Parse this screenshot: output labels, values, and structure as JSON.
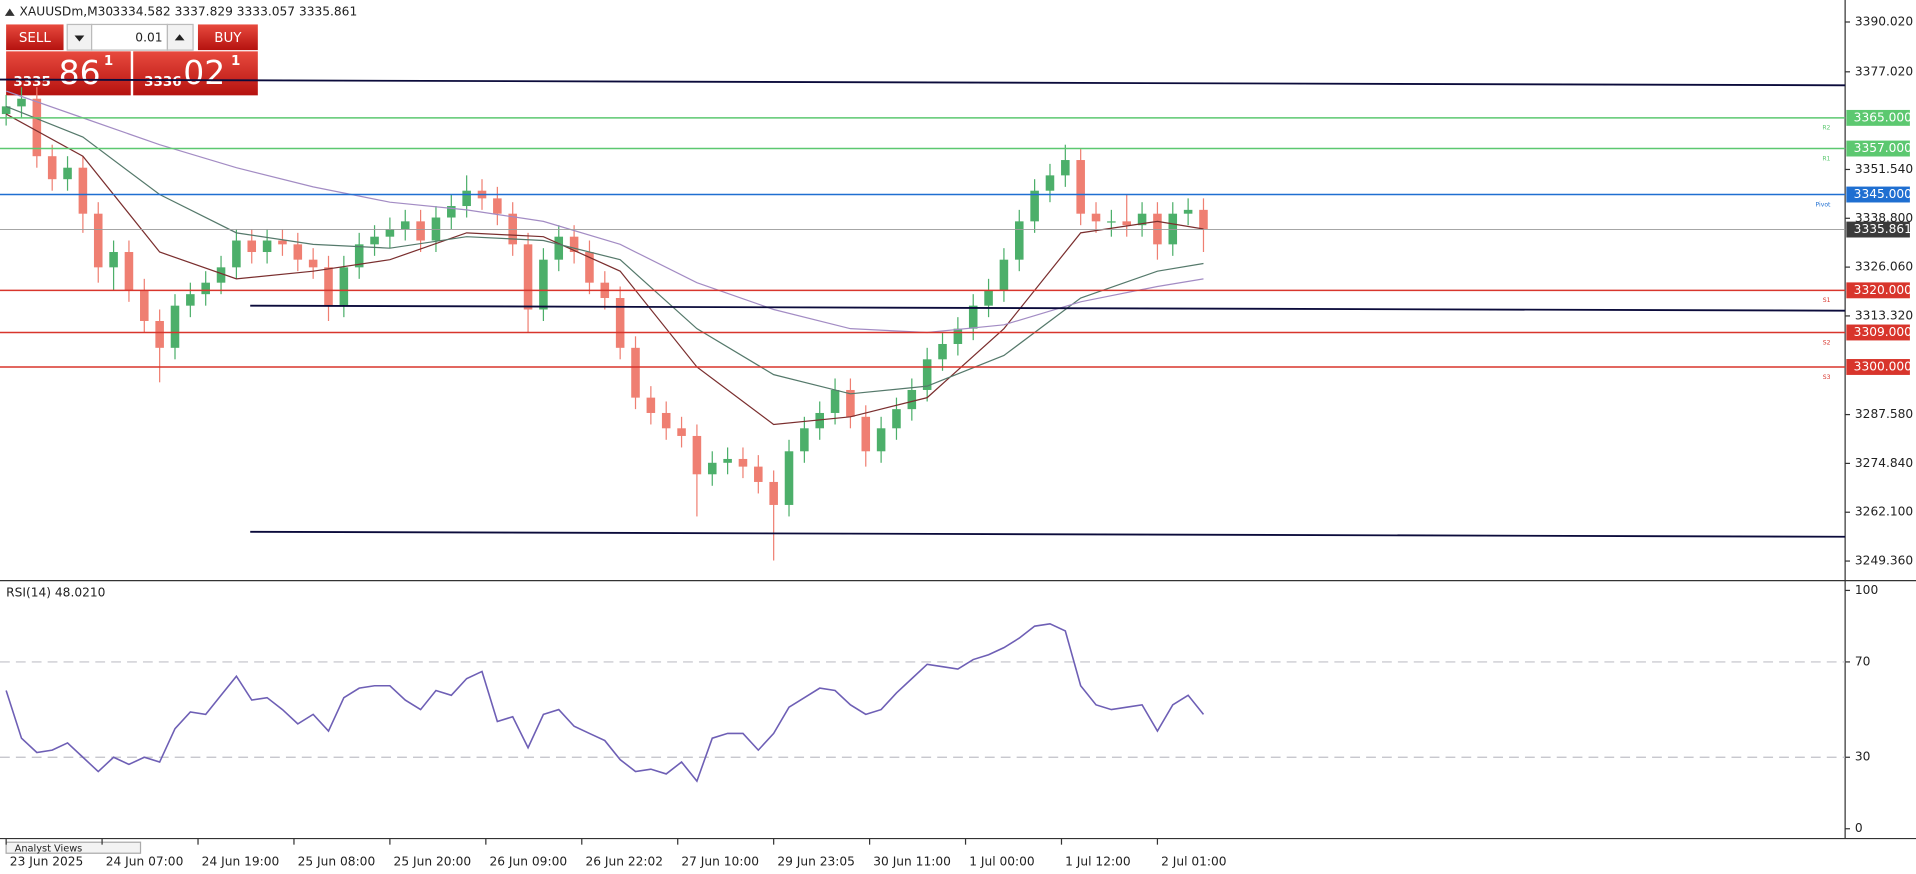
{
  "header": {
    "symbol": "XAUUSDm,M30",
    "ohlc": "3334.582 3337.829 3333.057 3335.861"
  },
  "trade_panel": {
    "sell": "SELL",
    "buy": "BUY",
    "lot": "0.01",
    "bid_big": "3335",
    "bid_main": "86",
    "bid_sup": "1",
    "ask_big": "3336",
    "ask_main": "02",
    "ask_sup": "1"
  },
  "chart_data": [
    {
      "type": "candlestick",
      "xlim": [
        -0.4,
        119.8
      ],
      "ylim": [
        3244.57,
        3395.76
      ],
      "xticks": [
        {
          "value": 0,
          "label": "23 Jun 2025"
        },
        {
          "value": 6.25,
          "label": "24 Jun 07:00"
        },
        {
          "value": 12.5,
          "label": "24 Jun 19:00"
        },
        {
          "value": 18.75,
          "label": "25 Jun 08:00"
        },
        {
          "value": 25,
          "label": "25 Jun 20:00"
        },
        {
          "value": 31.25,
          "label": "26 Jun 09:00"
        },
        {
          "value": 37.5,
          "label": "26 Jun 22:02"
        },
        {
          "value": 43.75,
          "label": "27 Jun 10:00"
        },
        {
          "value": 50,
          "label": "29 Jun 23:05"
        },
        {
          "value": 56.25,
          "label": "30 Jun 11:00"
        },
        {
          "value": 62.5,
          "label": "1 Jul 00:00"
        },
        {
          "value": 68.75,
          "label": "1 Jul 12:00"
        },
        {
          "value": 75,
          "label": "2 Jul 01:00"
        }
      ],
      "yticks": [
        {
          "value": 3390.02,
          "label": "3390.020"
        },
        {
          "value": 3377.02,
          "label": "3377.020"
        },
        {
          "value": 3351.54,
          "label": "3351.540"
        },
        {
          "value": 3338.8,
          "label": "3338.800"
        },
        {
          "value": 3326.06,
          "label": "3326.060"
        },
        {
          "value": 3313.32,
          "label": "3313.320"
        },
        {
          "value": 3287.58,
          "label": "3287.580"
        },
        {
          "value": 3274.84,
          "label": "3274.840"
        },
        {
          "value": 3262.1,
          "label": "3262.100"
        },
        {
          "value": 3249.36,
          "label": "3249.360"
        }
      ],
      "up_color": "#4caf6a",
      "down_color": "#ef7f72",
      "open": [
        3366,
        3368,
        3370,
        3355,
        3349,
        3352,
        3340,
        3326,
        3330,
        3320,
        3312,
        3305,
        3316,
        3319,
        3322,
        3326,
        3333,
        3330,
        3333,
        3332,
        3328,
        3326,
        3316,
        3326,
        3332,
        3334,
        3336,
        3338,
        3333,
        3339,
        3342,
        3346,
        3344,
        3340,
        3332,
        3315,
        3328,
        3334,
        3330,
        3322,
        3318,
        3305,
        3292,
        3288,
        3284,
        3282,
        3272,
        3275,
        3276,
        3274,
        3270,
        3264,
        3278,
        3284,
        3288,
        3294,
        3287,
        3278,
        3284,
        3289,
        3294,
        3302,
        3306,
        3310,
        3316,
        3320,
        3328,
        3338,
        3346,
        3350,
        3354,
        3340,
        3338,
        3338,
        3337,
        3340,
        3332,
        3340,
        3341
      ],
      "high": [
        3371,
        3373,
        3373,
        3358,
        3355,
        3355,
        3343,
        3333,
        3333,
        3323,
        3315,
        3319,
        3322,
        3325,
        3329,
        3336,
        3336,
        3336,
        3336,
        3335,
        3331,
        3329,
        3329,
        3335,
        3337,
        3339,
        3341,
        3341,
        3342,
        3345,
        3350,
        3349,
        3347,
        3343,
        3335,
        3331,
        3337,
        3337,
        3333,
        3325,
        3321,
        3308,
        3295,
        3291,
        3287,
        3285,
        3278,
        3279,
        3279,
        3277,
        3273,
        3281,
        3287,
        3291,
        3297,
        3297,
        3290,
        3287,
        3292,
        3297,
        3305,
        3309,
        3313,
        3319,
        3323,
        3331,
        3341,
        3349,
        3353,
        3358,
        3357,
        3343,
        3341,
        3345,
        3343,
        3343,
        3343,
        3344,
        3344
      ],
      "low": [
        3363,
        3365,
        3352,
        3346,
        3346,
        3335,
        3322,
        3320,
        3317,
        3309,
        3296,
        3302,
        3313,
        3316,
        3319,
        3323,
        3327,
        3327,
        3329,
        3325,
        3323,
        3312,
        3313,
        3323,
        3329,
        3331,
        3333,
        3330,
        3330,
        3336,
        3339,
        3341,
        3337,
        3329,
        3309,
        3312,
        3325,
        3327,
        3319,
        3315,
        3302,
        3289,
        3285,
        3281,
        3279,
        3261,
        3269,
        3272,
        3271,
        3267,
        3249.5,
        3261,
        3275,
        3281,
        3285,
        3284,
        3274,
        3275,
        3281,
        3286,
        3291,
        3299,
        3303,
        3307,
        3313,
        3317,
        3325,
        3335,
        3343,
        3347,
        3337,
        3335,
        3334,
        3334,
        3334,
        3328,
        3329,
        3337,
        3330
      ],
      "close": [
        3368,
        3370,
        3355,
        3349,
        3352,
        3340,
        3326,
        3330,
        3320,
        3312,
        3305,
        3316,
        3319,
        3322,
        3326,
        3333,
        3330,
        3333,
        3332,
        3328,
        3326,
        3316,
        3326,
        3332,
        3334,
        3336,
        3338,
        3333,
        3339,
        3342,
        3346,
        3344,
        3340,
        3332,
        3315,
        3328,
        3334,
        3330,
        3322,
        3318,
        3305,
        3292,
        3288,
        3284,
        3282,
        3272,
        3275,
        3276,
        3274,
        3270,
        3264,
        3278,
        3284,
        3288,
        3294,
        3287,
        3278,
        3284,
        3289,
        3294,
        3302,
        3306,
        3310,
        3316,
        3320,
        3328,
        3338,
        3346,
        3350,
        3354,
        3340,
        3338,
        3338,
        3337,
        3340,
        3332,
        3340,
        3341,
        3336
      ],
      "moving_averages": [
        {
          "color": "#7a2e2e",
          "x": [
            0,
            5,
            10,
            15,
            20,
            25,
            30,
            35,
            40,
            45,
            50,
            55,
            60,
            65,
            70,
            75,
            78
          ],
          "values": [
            3366,
            3355,
            3330,
            3323,
            3325,
            3328,
            3335,
            3334,
            3325,
            3300,
            3285,
            3287,
            3292,
            3310,
            3335,
            3338,
            3336
          ]
        },
        {
          "color": "#55796b",
          "x": [
            0,
            5,
            10,
            15,
            20,
            25,
            30,
            35,
            40,
            45,
            50,
            55,
            60,
            65,
            70,
            75,
            78
          ],
          "values": [
            3368,
            3360,
            3345,
            3335,
            3332,
            3331,
            3334,
            3333,
            3328,
            3310,
            3298,
            3293,
            3295,
            3303,
            3318,
            3325,
            3327
          ]
        },
        {
          "color": "#a38cc4",
          "x": [
            0,
            5,
            10,
            15,
            20,
            25,
            30,
            35,
            40,
            45,
            50,
            55,
            60,
            65,
            70,
            75,
            78
          ],
          "values": [
            3372,
            3365,
            3358,
            3352,
            3347,
            3343,
            3341,
            3338,
            3332,
            3322,
            3315,
            3310,
            3309,
            3311,
            3317,
            3321,
            3323
          ]
        }
      ],
      "trendlines": [
        {
          "color": "#0b0b3b",
          "x": [
            -0.4,
            119.8
          ],
          "values": [
            3375,
            3373.5
          ]
        },
        {
          "color": "#0b0b3b",
          "x": [
            15.9,
            119.8
          ],
          "values": [
            3316,
            3314.7
          ]
        },
        {
          "color": "#0b0b3b",
          "x": [
            15.9,
            119.8
          ],
          "values": [
            3257,
            3255.7
          ]
        }
      ],
      "levels": [
        {
          "value": 3365,
          "label": "3365.000",
          "tag": "R2",
          "color": "#5cc870"
        },
        {
          "value": 3357,
          "label": "3357.000",
          "tag": "R1",
          "color": "#5cc870"
        },
        {
          "value": 3345,
          "label": "3345.000",
          "tag": "Pivot",
          "color": "#1f6fd1"
        },
        {
          "value": 3320,
          "label": "3320.000",
          "tag": "S1",
          "color": "#d8352c"
        },
        {
          "value": 3309,
          "label": "3309.000",
          "tag": "S2",
          "color": "#d8352c"
        },
        {
          "value": 3300,
          "label": "3300.000",
          "tag": "S3",
          "color": "#d8352c"
        }
      ],
      "current_price": {
        "value": 3335.861,
        "label": "3335.861",
        "color": "#9a9a9a"
      }
    },
    {
      "type": "line",
      "title": "RSI(14) 48.0210",
      "color": "#6e5fb5",
      "xlim": [
        -0.4,
        119.8
      ],
      "ylim": [
        -3.6,
        103.6
      ],
      "yticks": [
        0,
        30,
        70,
        100
      ],
      "levels": [
        30,
        70
      ],
      "values": [
        58,
        38,
        32,
        33,
        36,
        30,
        24,
        30,
        27,
        30,
        28,
        42,
        49,
        48,
        56,
        64,
        54,
        55,
        50,
        44,
        48,
        41,
        55,
        59,
        60,
        60,
        54,
        50,
        58,
        56,
        63,
        66,
        45,
        47,
        34,
        48,
        50,
        43,
        40,
        37,
        29,
        24,
        25,
        23,
        28,
        20,
        38,
        40,
        40,
        33,
        40,
        51,
        55,
        59,
        58,
        52,
        48,
        50,
        57,
        63,
        69,
        68,
        67,
        71,
        73,
        76,
        80,
        85,
        86,
        83,
        60,
        52,
        50,
        51,
        52,
        41,
        52,
        56,
        48
      ]
    }
  ],
  "footer": {
    "tab": "Analyst Views"
  }
}
